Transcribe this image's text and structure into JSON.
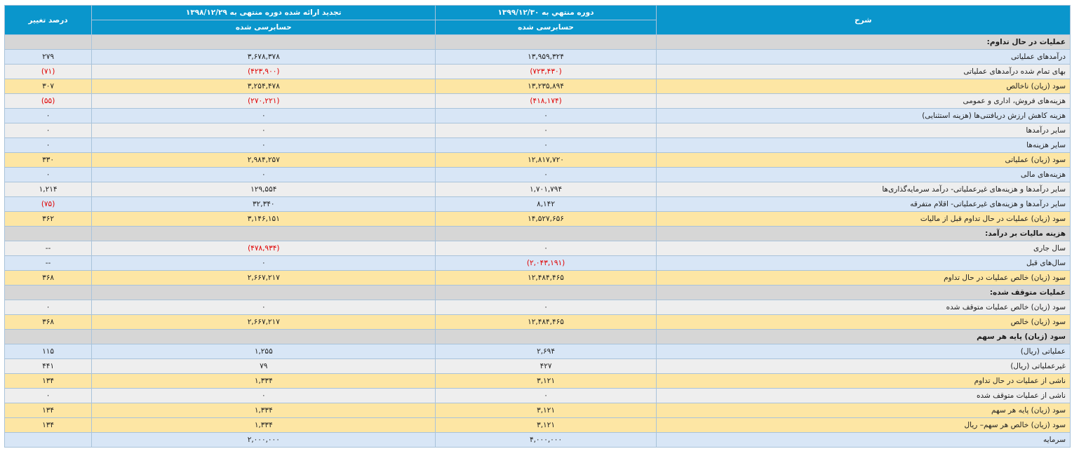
{
  "header": {
    "desc_label": "شرح",
    "current_period": "دوره منتهي به ۱۳۹۹/۱۲/۳۰",
    "previous_period": "تجدید ارائه شده دوره منتهی به ۱۳۹۸/۱۲/۲۹",
    "change_percent": "درصد تغییر",
    "audit_current": "حسابرسی شده",
    "audit_previous": "حسابرسی شده"
  },
  "rows": [
    {
      "type": "section",
      "label": "عملیات در حال تداوم:"
    },
    {
      "type": "blue",
      "label": "درآمدهای عملیاتی",
      "cur": "۱۳,۹۵۹,۳۲۴",
      "prev": "۳,۶۷۸,۳۷۸",
      "pct": "۲۷۹"
    },
    {
      "type": "gray",
      "label": "بهای تمام شده درآمدهای عملیاتی",
      "cur": "(۷۲۳,۴۳۰)",
      "prev": "(۴۲۳,۹۰۰)",
      "pct": "(۷۱)",
      "neg_cur": true,
      "neg_prev": true,
      "neg_pct": true
    },
    {
      "type": "yellow",
      "label": "سود (زیان) ناخالص",
      "cur": "۱۳,۲۳۵,۸۹۴",
      "prev": "۳,۲۵۴,۴۷۸",
      "pct": "۳۰۷"
    },
    {
      "type": "gray",
      "label": "هزینه‌های فروش، اداری و عمومی",
      "cur": "(۴۱۸,۱۷۴)",
      "prev": "(۲۷۰,۲۲۱)",
      "pct": "(۵۵)",
      "neg_cur": true,
      "neg_prev": true,
      "neg_pct": true
    },
    {
      "type": "blue",
      "label": "هزینه کاهش ارزش دریافتنی‌ها (هزینه استثنایی)",
      "cur": "۰",
      "prev": "۰",
      "pct": "۰"
    },
    {
      "type": "gray",
      "label": "سایر درآمدها",
      "cur": "۰",
      "prev": "۰",
      "pct": "۰"
    },
    {
      "type": "blue",
      "label": "سایر هزینه‌ها",
      "cur": "۰",
      "prev": "۰",
      "pct": "۰"
    },
    {
      "type": "yellow",
      "label": "سود (زیان) عملیاتی",
      "cur": "۱۲,۸۱۷,۷۲۰",
      "prev": "۲,۹۸۴,۲۵۷",
      "pct": "۳۳۰"
    },
    {
      "type": "blue",
      "label": "هزینه‌های مالی",
      "cur": "۰",
      "prev": "۰",
      "pct": "۰"
    },
    {
      "type": "gray",
      "label": "سایر درآمدها و هزینه‌های غیرعملیاتی- درآمد سرمایه‌گذاری‌ها",
      "cur": "۱,۷۰۱,۷۹۴",
      "prev": "۱۲۹,۵۵۴",
      "pct": "۱,۲۱۴"
    },
    {
      "type": "blue",
      "label": "سایر درآمدها و هزینه‌های غیرعملیاتی- اقلام متفرقه",
      "cur": "۸,۱۴۲",
      "prev": "۳۲,۳۴۰",
      "pct": "(۷۵)",
      "neg_pct": true
    },
    {
      "type": "yellow",
      "label": "سود (زیان) عملیات در حال تداوم قبل از مالیات",
      "cur": "۱۴,۵۲۷,۶۵۶",
      "prev": "۳,۱۴۶,۱۵۱",
      "pct": "۳۶۲"
    },
    {
      "type": "section",
      "label": "هزینه مالیات بر درآمد:"
    },
    {
      "type": "gray",
      "label": "سال جاری",
      "cur": "۰",
      "prev": "(۴۷۸,۹۳۴)",
      "pct": "--",
      "neg_prev": true
    },
    {
      "type": "blue",
      "label": "سال‌های قبل",
      "cur": "(۲,۰۴۳,۱۹۱)",
      "prev": "۰",
      "pct": "--",
      "neg_cur": true
    },
    {
      "type": "yellow",
      "label": "سود (زیان) خالص عملیات در حال تداوم",
      "cur": "۱۲,۴۸۴,۴۶۵",
      "prev": "۲,۶۶۷,۲۱۷",
      "pct": "۳۶۸"
    },
    {
      "type": "section",
      "label": "عملیات متوقف شده:"
    },
    {
      "type": "gray",
      "label": "سود (زیان) خالص عملیات متوقف شده",
      "cur": "۰",
      "prev": "۰",
      "pct": "۰"
    },
    {
      "type": "yellow",
      "label": "سود (زیان) خالص",
      "cur": "۱۲,۴۸۴,۴۶۵",
      "prev": "۲,۶۶۷,۲۱۷",
      "pct": "۳۶۸"
    },
    {
      "type": "section",
      "label": "سود (زیان) پایه هر سهم"
    },
    {
      "type": "blue",
      "label": "عملیاتی (ریال)",
      "cur": "۲,۶۹۴",
      "prev": "۱,۲۵۵",
      "pct": "۱۱۵"
    },
    {
      "type": "gray",
      "label": "غیرعملیاتی (ریال)",
      "cur": "۴۲۷",
      "prev": "۷۹",
      "pct": "۴۴۱"
    },
    {
      "type": "yellow",
      "label": "ناشی از عملیات در حال تداوم",
      "cur": "۳,۱۲۱",
      "prev": "۱,۳۳۴",
      "pct": "۱۳۴"
    },
    {
      "type": "gray",
      "label": "ناشی از عملیات متوقف شده",
      "cur": "۰",
      "prev": "۰",
      "pct": "۰"
    },
    {
      "type": "yellow",
      "label": "سود (زیان) پایه هر سهم",
      "cur": "۳,۱۲۱",
      "prev": "۱,۳۳۴",
      "pct": "۱۳۴"
    },
    {
      "type": "yellow",
      "label": "سود (زیان) خالص هر سهم– ریال",
      "cur": "۳,۱۲۱",
      "prev": "۱,۳۳۴",
      "pct": "۱۳۴"
    },
    {
      "type": "blue",
      "label": "سرمایه",
      "cur": "۴,۰۰۰,۰۰۰",
      "prev": "۲,۰۰۰,۰۰۰",
      "pct": ""
    }
  ]
}
